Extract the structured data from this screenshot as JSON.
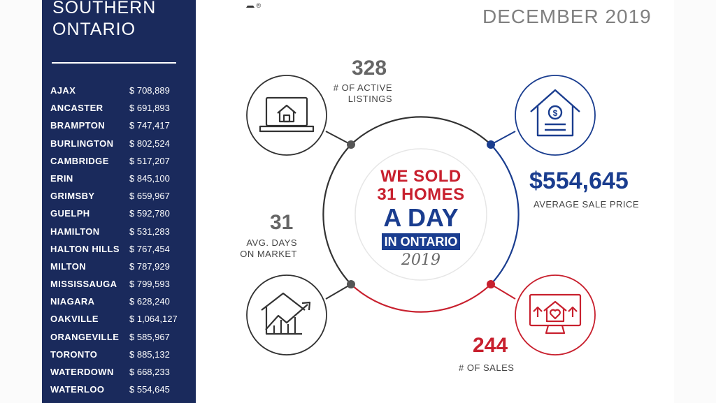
{
  "sidebar": {
    "title_line1": "SOUTHERN",
    "title_line2": "ONTARIO",
    "cities": [
      {
        "name": "AJAX",
        "price": "$ 708,889"
      },
      {
        "name": "ANCASTER",
        "price": "$ 691,893"
      },
      {
        "name": "BRAMPTON",
        "price": "$ 747,417"
      },
      {
        "name": "BURLINGTON",
        "price": "$ 802,524"
      },
      {
        "name": "CAMBRIDGE",
        "price": "$ 517,207"
      },
      {
        "name": "ERIN",
        "price": "$ 845,100"
      },
      {
        "name": "GRIMSBY",
        "price": "$ 659,967"
      },
      {
        "name": "GUELPH",
        "price": "$ 592,780"
      },
      {
        "name": "HAMILTON",
        "price": "$ 531,283"
      },
      {
        "name": "HALTON HILLS",
        "price": "$ 767,454"
      },
      {
        "name": "MILTON",
        "price": "$ 787,929"
      },
      {
        "name": "MISSISSAUGA",
        "price": "$ 799,593"
      },
      {
        "name": "NIAGARA",
        "price": "$ 628,240"
      },
      {
        "name": "OAKVILLE",
        "price": "$ 1,064,127"
      },
      {
        "name": "ORANGEVILLE",
        "price": "$ 585,967"
      },
      {
        "name": "TORONTO",
        "price": "$ 885,132"
      },
      {
        "name": "WATERDOWN",
        "price": "$ 668,233"
      },
      {
        "name": "WATERLOO",
        "price": "$ 554,645"
      }
    ]
  },
  "header": {
    "date": "DECEMBER 2019",
    "logo_mark": "®"
  },
  "stats": {
    "active_listings": {
      "value": "328",
      "label_line1": "# OF ACTIVE",
      "label_line2": "LISTINGS"
    },
    "avg_price": {
      "value": "$554,645",
      "label": "AVERAGE SALE PRICE"
    },
    "days_on_market": {
      "value": "31",
      "label_line1": "AVG. DAYS",
      "label_line2": "ON MARKET"
    },
    "sales": {
      "value": "244",
      "label": "# OF SALES"
    }
  },
  "center": {
    "line1": "WE SOLD",
    "line2": "31 HOMES",
    "line3": "A DAY",
    "band": "IN ONTARIO",
    "year": "2019"
  },
  "colors": {
    "navy": "#1a2a5c",
    "blue": "#1a3d8f",
    "red": "#c8202e",
    "gray": "#808080"
  }
}
